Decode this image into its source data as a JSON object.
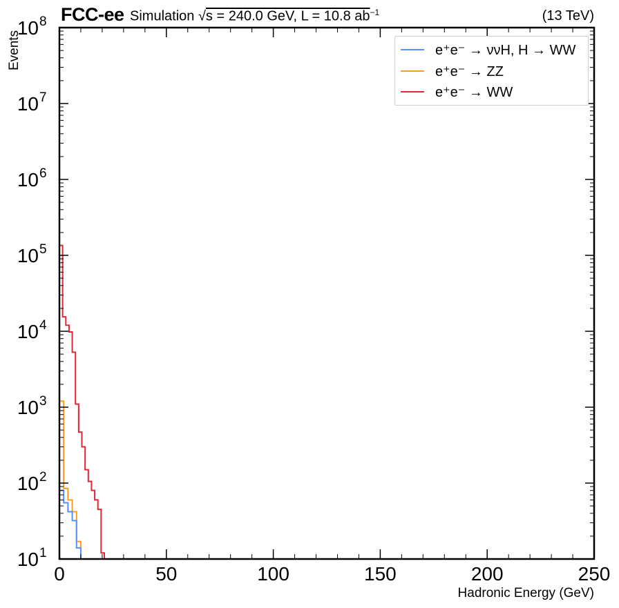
{
  "header": {
    "experiment": "FCC-ee",
    "simulation_prefix": "Simulation ",
    "sqrt_symbol": "√",
    "simulation_mid": "s = 240.0 GeV, L = 10.8 ab",
    "lumi_exponent": "−1",
    "energy": "(13 TeV)"
  },
  "colors": {
    "nuH": "#5790fc",
    "ZZ": "#f89c20",
    "WW": "#e42536"
  },
  "chart_data": {
    "type": "line",
    "step": true,
    "xlabel": "Hadronic Energy (GeV)",
    "ylabel": "Events",
    "xlim": [
      0,
      250
    ],
    "ylim": [
      10,
      100000000
    ],
    "yscale": "log",
    "x_ticks": [
      "0",
      "50",
      "100",
      "150",
      "200",
      "250"
    ],
    "y_ticks": [
      {
        "base": "10",
        "exp": "1"
      },
      {
        "base": "10",
        "exp": "2"
      },
      {
        "base": "10",
        "exp": "3"
      },
      {
        "base": "10",
        "exp": "4"
      },
      {
        "base": "10",
        "exp": "5"
      },
      {
        "base": "10",
        "exp": "6"
      },
      {
        "base": "10",
        "exp": "7"
      },
      {
        "base": "10",
        "exp": "8"
      }
    ],
    "legend_position": "top-right",
    "bin_edges": [
      0,
      2,
      4,
      6,
      8,
      10,
      12,
      14,
      16,
      18,
      20,
      22
    ],
    "series": [
      {
        "key": "nuH",
        "name": "e⁺e⁻ → ννH, H → WW",
        "values": [
          80,
          55,
          42,
          32,
          14,
          0,
          0,
          0,
          0,
          0,
          0
        ]
      },
      {
        "key": "ZZ",
        "name": "e⁺e⁻ → ZZ",
        "values": [
          1200,
          85,
          60,
          42,
          17,
          0,
          0,
          0,
          0,
          0,
          0
        ]
      },
      {
        "key": "WW",
        "name": "e⁺e⁻ → WW",
        "values": [
          135000,
          15500,
          12000,
          9800,
          5300,
          1100,
          470,
          300,
          150,
          105,
          80,
          60,
          45,
          12
        ]
      }
    ],
    "ww_bin_edges": [
      0,
      1.5,
      3,
      4.5,
      6,
      7.5,
      9,
      10.5,
      12,
      13.5,
      15,
      16.5,
      18,
      19.5,
      21
    ]
  }
}
